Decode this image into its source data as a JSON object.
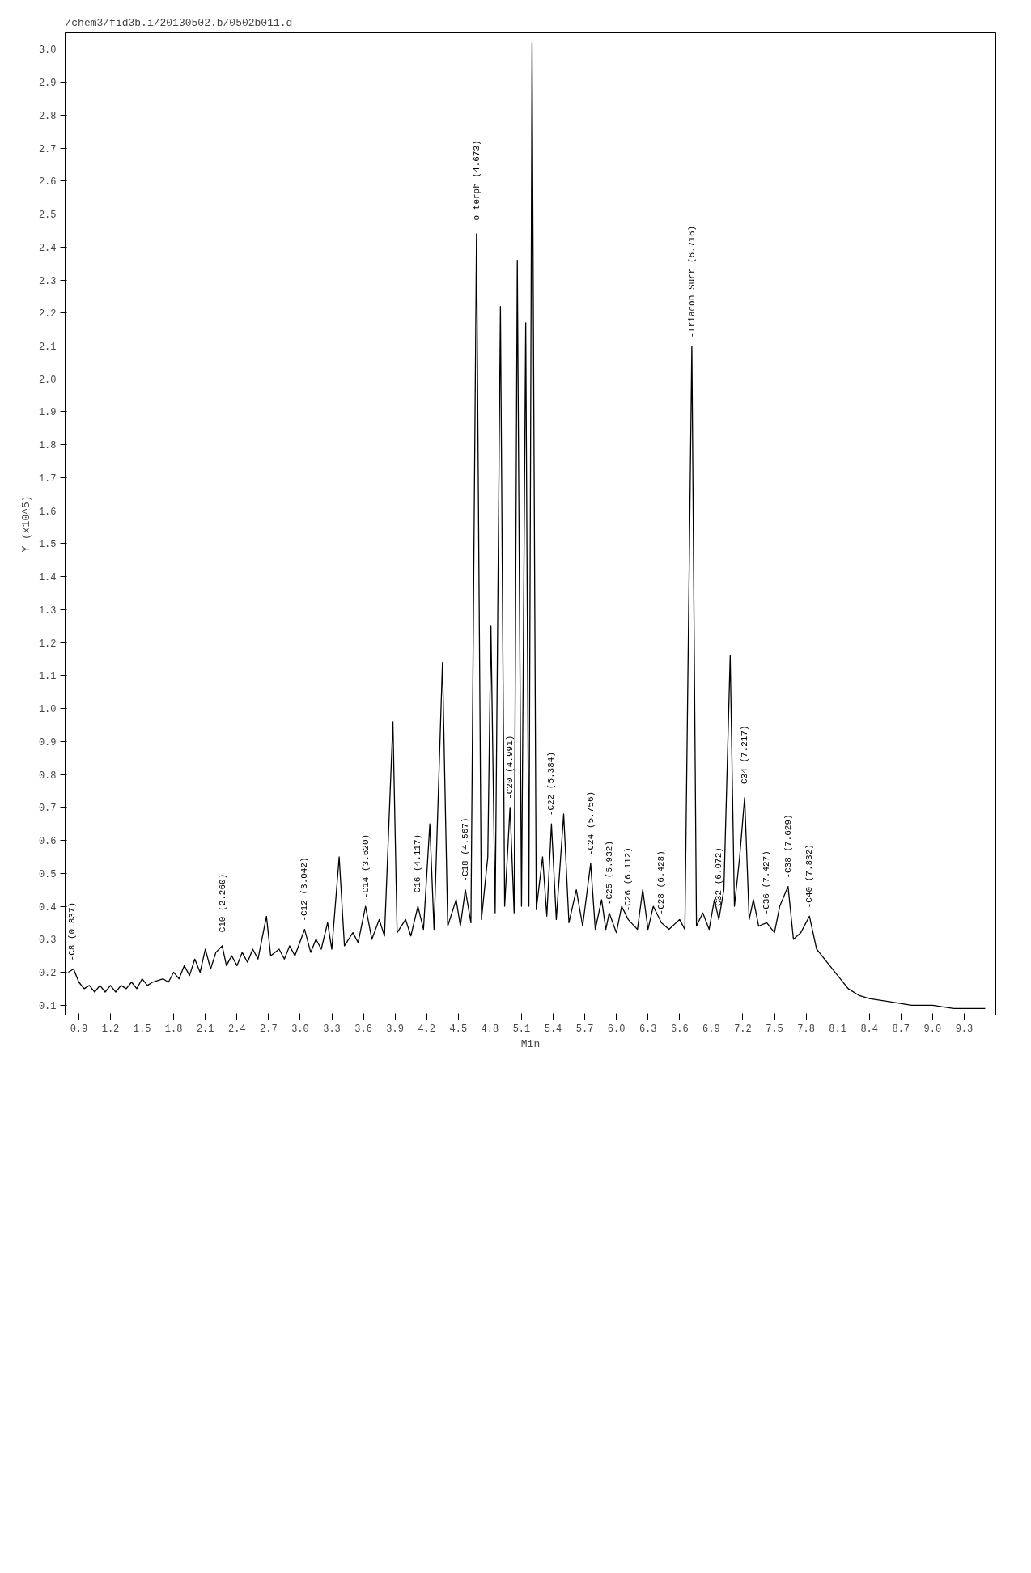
{
  "chart_data": {
    "type": "line",
    "title": "/chem3/fid3b.i/20130502.b/0502b011.d",
    "xlabel": "Min",
    "ylabel": "Y (x10^5)",
    "x": [
      0.8,
      0.85,
      0.9,
      0.95,
      1.0,
      1.05,
      1.1,
      1.15,
      1.2,
      1.25,
      1.3,
      1.35,
      1.4,
      1.45,
      1.5,
      1.55,
      1.6,
      1.7,
      1.75,
      1.8,
      1.85,
      1.9,
      1.95,
      2.0,
      2.05,
      2.1,
      2.15,
      2.2,
      2.26,
      2.3,
      2.35,
      2.4,
      2.45,
      2.5,
      2.55,
      2.6,
      2.68,
      2.72,
      2.8,
      2.85,
      2.9,
      2.95,
      3.042,
      3.1,
      3.15,
      3.2,
      3.26,
      3.3,
      3.37,
      3.42,
      3.5,
      3.55,
      3.62,
      3.68,
      3.75,
      3.8,
      3.88,
      3.92,
      4.0,
      4.05,
      4.117,
      4.17,
      4.23,
      4.27,
      4.35,
      4.4,
      4.48,
      4.52,
      4.567,
      4.62,
      4.673,
      4.72,
      4.78,
      4.81,
      4.85,
      4.9,
      4.94,
      4.991,
      5.03,
      5.06,
      5.1,
      5.14,
      5.17,
      5.2,
      5.24,
      5.3,
      5.34,
      5.384,
      5.43,
      5.5,
      5.55,
      5.62,
      5.68,
      5.756,
      5.8,
      5.86,
      5.9,
      5.932,
      6.0,
      6.05,
      6.112,
      6.2,
      6.25,
      6.3,
      6.35,
      6.428,
      6.5,
      6.6,
      6.65,
      6.716,
      6.76,
      6.82,
      6.88,
      6.93,
      6.972,
      7.02,
      7.08,
      7.12,
      7.17,
      7.217,
      7.26,
      7.3,
      7.35,
      7.427,
      7.5,
      7.55,
      7.629,
      7.68,
      7.75,
      7.832,
      7.9,
      7.95,
      8.0,
      8.1,
      8.2,
      8.3,
      8.4,
      8.6,
      8.8,
      9.0,
      9.2,
      9.5
    ],
    "series": [
      {
        "color": "#000000",
        "values": [
          0.2,
          0.21,
          0.17,
          0.15,
          0.16,
          0.14,
          0.16,
          0.14,
          0.16,
          0.14,
          0.16,
          0.15,
          0.17,
          0.15,
          0.18,
          0.16,
          0.17,
          0.18,
          0.17,
          0.2,
          0.18,
          0.22,
          0.19,
          0.24,
          0.2,
          0.27,
          0.21,
          0.26,
          0.28,
          0.22,
          0.25,
          0.22,
          0.26,
          0.23,
          0.27,
          0.24,
          0.37,
          0.25,
          0.27,
          0.24,
          0.28,
          0.25,
          0.33,
          0.26,
          0.3,
          0.27,
          0.35,
          0.27,
          0.55,
          0.28,
          0.32,
          0.29,
          0.4,
          0.3,
          0.36,
          0.31,
          0.96,
          0.32,
          0.36,
          0.31,
          0.4,
          0.33,
          0.65,
          0.33,
          1.14,
          0.34,
          0.42,
          0.34,
          0.45,
          0.35,
          2.44,
          0.36,
          0.55,
          1.25,
          0.38,
          2.22,
          0.4,
          0.7,
          0.38,
          2.36,
          0.4,
          2.17,
          0.4,
          3.02,
          0.39,
          0.55,
          0.37,
          0.65,
          0.36,
          0.68,
          0.35,
          0.45,
          0.34,
          0.53,
          0.33,
          0.42,
          0.33,
          0.38,
          0.32,
          0.4,
          0.36,
          0.33,
          0.45,
          0.33,
          0.4,
          0.35,
          0.33,
          0.36,
          0.33,
          2.1,
          0.34,
          0.38,
          0.33,
          0.42,
          0.36,
          0.45,
          1.16,
          0.4,
          0.55,
          0.73,
          0.36,
          0.42,
          0.34,
          0.35,
          0.32,
          0.4,
          0.46,
          0.3,
          0.32,
          0.37,
          0.27,
          0.25,
          0.23,
          0.19,
          0.15,
          0.13,
          0.12,
          0.11,
          0.1,
          0.1,
          0.09,
          0.09
        ]
      }
    ],
    "xlim": [
      0.77,
      9.6
    ],
    "ylim": [
      0.07,
      3.05
    ],
    "xticks": [
      0.9,
      1.2,
      1.5,
      1.8,
      2.1,
      2.4,
      2.7,
      {
        "value": 3.0,
        "label": "3.0"
      },
      3.3,
      3.6,
      3.9,
      4.2,
      4.5,
      4.8,
      5.1,
      5.4,
      5.7,
      {
        "value": 6.0,
        "label": "6.0"
      },
      6.3,
      6.6,
      6.9,
      7.2,
      7.5,
      7.8,
      8.1,
      8.4,
      8.7,
      {
        "value": 9.0,
        "label": "9.0"
      },
      9.3
    ],
    "yticks": [
      0.1,
      0.2,
      0.3,
      0.4,
      0.5,
      0.6,
      0.7,
      0.8,
      0.9,
      {
        "value": 1.0,
        "label": "1.0"
      },
      1.1,
      1.2,
      1.3,
      1.4,
      1.5,
      1.6,
      1.7,
      1.8,
      1.9,
      {
        "value": 2.0,
        "label": "2.0"
      },
      2.1,
      2.2,
      2.3,
      2.4,
      2.5,
      2.6,
      2.7,
      2.8,
      2.9,
      {
        "value": 3.0,
        "label": "3.0"
      }
    ],
    "line_style": "solid",
    "annotations": [
      {
        "text": "-C8 (0.837)",
        "x": 0.837,
        "y": 0.21
      },
      {
        "text": "-C10 (2.260)",
        "x": 2.26,
        "y": 0.28
      },
      {
        "text": "-C12 (3.042)",
        "x": 3.042,
        "y": 0.33
      },
      {
        "text": "-C14 (3.620)",
        "x": 3.62,
        "y": 0.4
      },
      {
        "text": "-C16 (4.117)",
        "x": 4.117,
        "y": 0.4
      },
      {
        "text": "-C18 (4.567)",
        "x": 4.567,
        "y": 0.45
      },
      {
        "text": "-o-terph (4.673)",
        "x": 4.673,
        "y": 2.44
      },
      {
        "text": "-C20 (4.991)",
        "x": 4.991,
        "y": 0.7
      },
      {
        "text": "-C22 (5.384)",
        "x": 5.384,
        "y": 0.65
      },
      {
        "text": "-C24 (5.756)",
        "x": 5.756,
        "y": 0.53
      },
      {
        "text": "-C25 (5.932)",
        "x": 5.932,
        "y": 0.38
      },
      {
        "text": "-C26 (6.112)",
        "x": 6.112,
        "y": 0.36
      },
      {
        "text": "-C28 (6.428)",
        "x": 6.428,
        "y": 0.35
      },
      {
        "text": "-Triacon Surr (6.716)",
        "x": 6.716,
        "y": 2.1
      },
      {
        "text": "-C32 (6.972)",
        "x": 6.972,
        "y": 0.36
      },
      {
        "text": "-C34 (7.217)",
        "x": 7.217,
        "y": 0.73
      },
      {
        "text": "-C36 (7.427)",
        "x": 7.427,
        "y": 0.35
      },
      {
        "text": "-C38 (7.629)",
        "x": 7.629,
        "y": 0.46
      },
      {
        "text": "-C40 (7.832)",
        "x": 7.832,
        "y": 0.37
      }
    ]
  }
}
